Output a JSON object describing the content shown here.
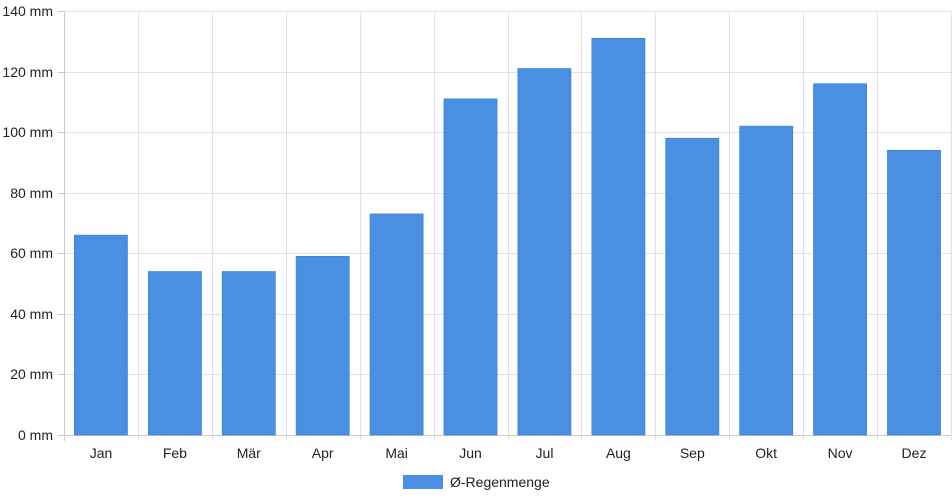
{
  "chart_data": {
    "type": "bar",
    "categories": [
      "Jan",
      "Feb",
      "Mär",
      "Apr",
      "Mai",
      "Jun",
      "Jul",
      "Aug",
      "Sep",
      "Okt",
      "Nov",
      "Dez"
    ],
    "series": [
      {
        "name": "Ø-Regenmenge",
        "values": [
          66,
          54,
          54,
          59,
          73,
          111,
          121,
          131,
          98,
          102,
          116,
          94
        ],
        "color": "#4a90e2"
      }
    ],
    "ylim": [
      0,
      140
    ],
    "yticks": [
      {
        "value": 0,
        "label": "0 mm"
      },
      {
        "value": 20,
        "label": "20 mm"
      },
      {
        "value": 40,
        "label": "40 mm"
      },
      {
        "value": 60,
        "label": "60 mm"
      },
      {
        "value": 80,
        "label": "80 mm"
      },
      {
        "value": 100,
        "label": "100 mm"
      },
      {
        "value": 120,
        "label": "120 mm"
      },
      {
        "value": 140,
        "label": "140 mm"
      }
    ],
    "grid": true,
    "legend_position": "bottom"
  }
}
